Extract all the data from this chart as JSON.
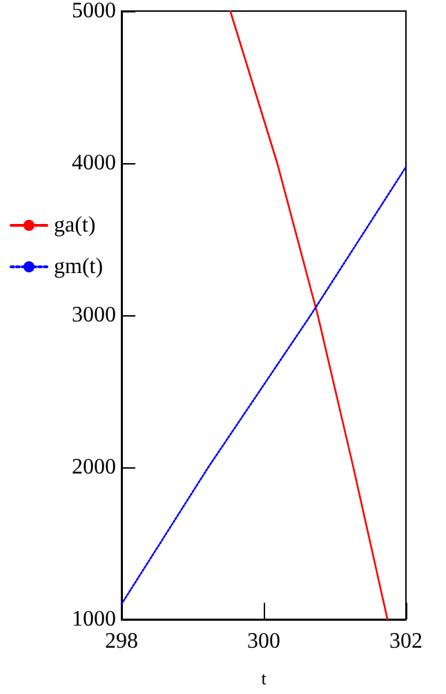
{
  "chart_data": {
    "type": "line",
    "xlabel": "t",
    "xlim": [
      298,
      302
    ],
    "xticks": [
      298,
      300,
      302
    ],
    "ylim": [
      1000,
      5000
    ],
    "yticks": [
      1000,
      2000,
      3000,
      4000,
      5000
    ],
    "grid": false,
    "legend": "left",
    "marker": "none",
    "series": [
      {
        "name": "ga(t)",
        "color": "#ff0000",
        "line_style": "solid",
        "x": [
          299.53,
          300.19,
          300.76,
          301.26,
          301.74
        ],
        "values": [
          5000,
          4000,
          3000,
          2000,
          1000
        ]
      },
      {
        "name": "gm(t)",
        "color": "#0000ff",
        "line_style": "dotted",
        "x": [
          298,
          299.22,
          300.66,
          302
        ],
        "values": [
          1100,
          2000,
          3000,
          3975
        ]
      }
    ]
  }
}
